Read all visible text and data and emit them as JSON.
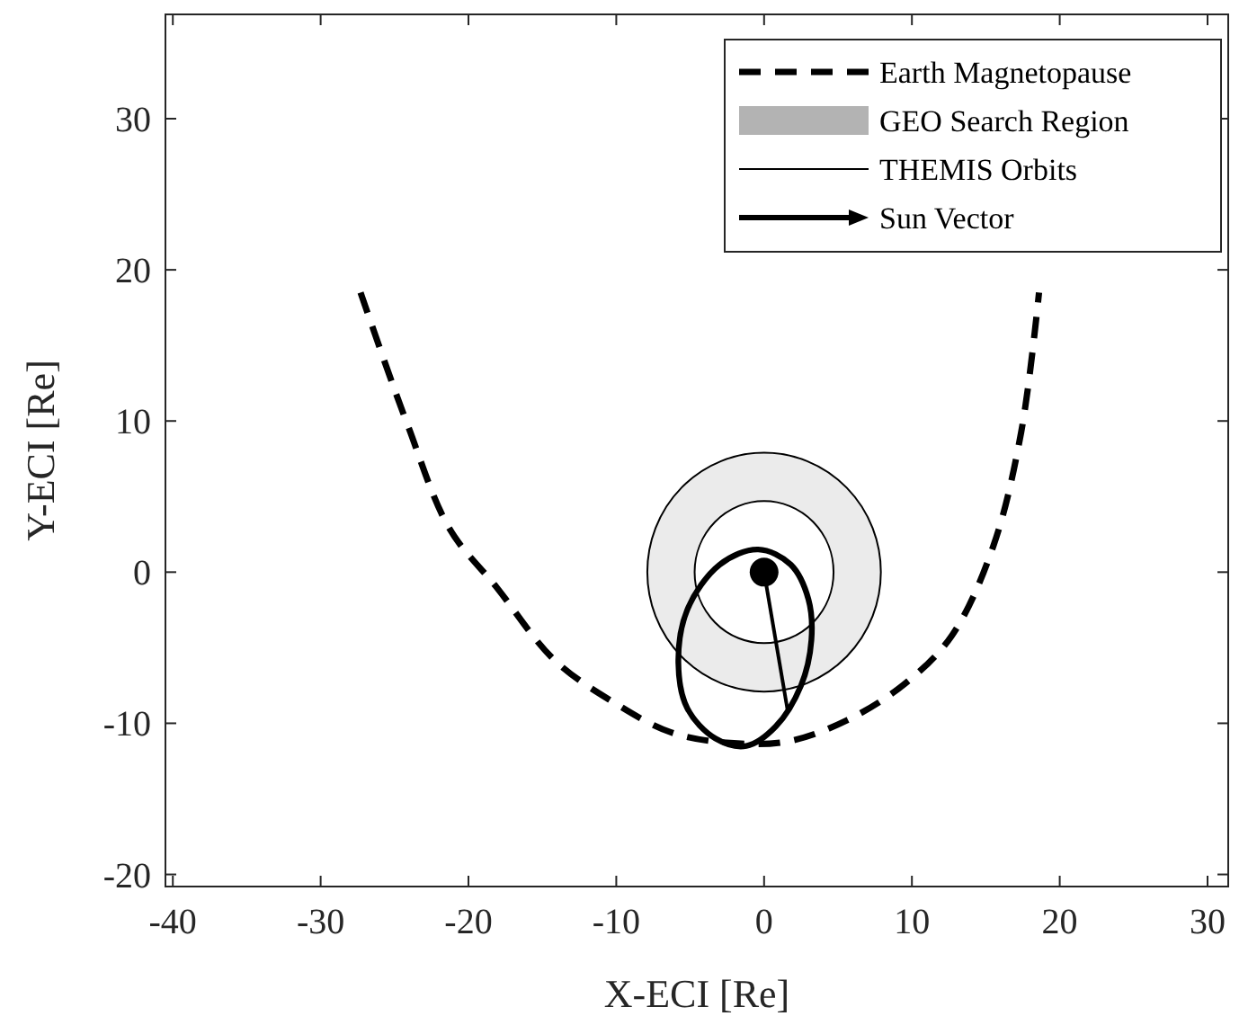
{
  "chart_data": {
    "type": "line",
    "xlabel": "X-ECI [Re]",
    "ylabel": "Y-ECI [Re]",
    "xlim": [
      -40.5,
      31.4
    ],
    "ylim": [
      -20.8,
      36.9
    ],
    "xticks": [
      -40,
      -30,
      -20,
      -10,
      0,
      10,
      20,
      30
    ],
    "yticks": [
      -20,
      -10,
      0,
      10,
      20,
      30
    ],
    "grid": false,
    "legend": "top right",
    "annotations": [
      "GEO Search Region",
      "THEMIS Orbits",
      "Sun Vector"
    ],
    "series": [
      {
        "name": "Earth Magnetopause",
        "line_style": "dashed",
        "color": "#000000",
        "x": [
          -27.3,
          -25.7,
          -24.1,
          -21.3,
          -18.1,
          -14.2,
          -10.2,
          -6.3,
          -2.3,
          1.6,
          5.6,
          9.5,
          12.7,
          15.5,
          17.4,
          18.6
        ],
        "values": [
          18.5,
          14.0,
          9.7,
          2.9,
          -1.0,
          -5.8,
          -8.6,
          -10.6,
          -11.3,
          -11.2,
          -9.8,
          -7.4,
          -4.2,
          1.7,
          9.3,
          18.5
        ]
      },
      {
        "type": "scatter",
        "marker": "circle",
        "color": "#000000",
        "x": [
          0
        ],
        "values": [
          0
        ]
      }
    ]
  }
}
